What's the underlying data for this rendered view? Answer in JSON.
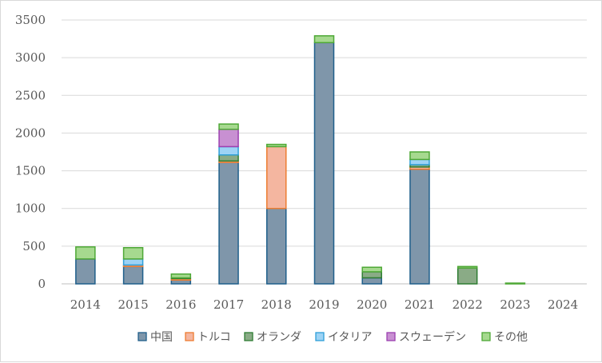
{
  "chart_data": {
    "type": "bar",
    "stacked": true,
    "categories": [
      "2014",
      "2015",
      "2016",
      "2017",
      "2018",
      "2019",
      "2020",
      "2021",
      "2022",
      "2023",
      "2024"
    ],
    "ylim": [
      0,
      3500
    ],
    "yticks": [
      0,
      500,
      1000,
      1500,
      2000,
      2500,
      3000,
      3500
    ],
    "grid": true,
    "legend_position": "bottom-right",
    "series": [
      {
        "name": "中国",
        "color": "#7f96aa",
        "edge": "#1f5f8b",
        "values": [
          330,
          230,
          50,
          1610,
          1000,
          3200,
          80,
          1520,
          0,
          0,
          0
        ]
      },
      {
        "name": "トルコ",
        "color": "#f4b6a0",
        "edge": "#ed7d31",
        "values": [
          0,
          20,
          20,
          20,
          820,
          0,
          0,
          30,
          0,
          0,
          0
        ]
      },
      {
        "name": "オランダ",
        "color": "#8aab86",
        "edge": "#2e7d32",
        "values": [
          0,
          0,
          10,
          80,
          0,
          0,
          80,
          30,
          210,
          0,
          0
        ]
      },
      {
        "name": "イタリア",
        "color": "#9dd3f5",
        "edge": "#2e9fd8",
        "values": [
          0,
          80,
          0,
          110,
          0,
          0,
          0,
          70,
          0,
          0,
          0
        ]
      },
      {
        "name": "スウェーデン",
        "color": "#c890d2",
        "edge": "#9c3fb0",
        "values": [
          0,
          0,
          0,
          230,
          0,
          0,
          0,
          0,
          0,
          0,
          0
        ]
      },
      {
        "name": "その他",
        "color": "#a6d98f",
        "edge": "#4ea836",
        "values": [
          160,
          150,
          50,
          70,
          30,
          90,
          60,
          100,
          20,
          10,
          0
        ]
      }
    ]
  }
}
